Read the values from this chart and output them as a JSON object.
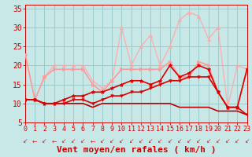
{
  "xlabel": "Vent moyen/en rafales ( km/h )",
  "xlim": [
    0,
    23
  ],
  "ylim": [
    5,
    36
  ],
  "yticks": [
    5,
    10,
    15,
    20,
    25,
    30,
    35
  ],
  "xticks": [
    0,
    1,
    2,
    3,
    4,
    5,
    6,
    7,
    8,
    9,
    10,
    11,
    12,
    13,
    14,
    15,
    16,
    17,
    18,
    19,
    20,
    21,
    22,
    23
  ],
  "bg_color": "#c8e8e8",
  "grid_color": "#99cccc",
  "lines": [
    {
      "x": [
        0,
        1,
        2,
        3,
        4,
        5,
        6,
        7,
        8,
        9,
        10,
        11,
        12,
        13,
        14,
        15,
        16,
        17,
        18,
        19,
        20,
        21,
        22,
        23
      ],
      "y": [
        11,
        11,
        10,
        10,
        10,
        10,
        10,
        9,
        10,
        10,
        10,
        10,
        10,
        10,
        10,
        10,
        9,
        9,
        9,
        9,
        8,
        8,
        8,
        7
      ],
      "color": "#bb0000",
      "lw": 1.2,
      "marker": null,
      "ms": 0,
      "alpha": 1.0,
      "zorder": 3
    },
    {
      "x": [
        0,
        1,
        2,
        3,
        4,
        5,
        6,
        7,
        8,
        9,
        10,
        11,
        12,
        13,
        14,
        15,
        16,
        17,
        18,
        19,
        20,
        21,
        22,
        23
      ],
      "y": [
        11,
        11,
        10,
        10,
        10,
        11,
        11,
        10,
        11,
        12,
        12,
        13,
        13,
        14,
        15,
        16,
        16,
        17,
        17,
        17,
        13,
        9,
        9,
        7
      ],
      "color": "#dd0000",
      "lw": 1.2,
      "marker": "v",
      "ms": 2.5,
      "alpha": 1.0,
      "zorder": 4
    },
    {
      "x": [
        0,
        1,
        2,
        3,
        4,
        5,
        6,
        7,
        8,
        9,
        10,
        11,
        12,
        13,
        14,
        15,
        16,
        17,
        18,
        19,
        20,
        21,
        22,
        23
      ],
      "y": [
        11,
        11,
        10,
        10,
        11,
        12,
        12,
        13,
        13,
        14,
        15,
        16,
        16,
        15,
        16,
        20,
        17,
        18,
        20,
        19,
        13,
        9,
        9,
        19
      ],
      "color": "#dd0000",
      "lw": 1.2,
      "marker": "*",
      "ms": 3.5,
      "alpha": 1.0,
      "zorder": 4
    },
    {
      "x": [
        0,
        1,
        2,
        3,
        4,
        5,
        6,
        7,
        8,
        9,
        10,
        11,
        12,
        13,
        14,
        15,
        16,
        17,
        18,
        19,
        20,
        21,
        22,
        23
      ],
      "y": [
        23,
        11,
        17,
        19,
        19,
        19,
        19,
        15,
        13,
        16,
        19,
        19,
        19,
        19,
        19,
        21,
        17,
        17,
        21,
        20,
        13,
        9,
        9,
        19
      ],
      "color": "#ff9999",
      "lw": 1.2,
      "marker": ">",
      "ms": 3,
      "alpha": 1.0,
      "zorder": 3
    },
    {
      "x": [
        0,
        1,
        2,
        3,
        4,
        5,
        6,
        7,
        8,
        9,
        10,
        11,
        12,
        13,
        14,
        15,
        16,
        17,
        18,
        19,
        20,
        21,
        22,
        23
      ],
      "y": [
        23,
        11,
        17,
        20,
        20,
        20,
        20,
        16,
        14,
        16,
        30,
        20,
        25,
        28,
        20,
        25,
        32,
        34,
        33,
        27,
        30,
        9,
        20,
        19
      ],
      "color": "#ffaaaa",
      "lw": 1.0,
      "marker": "^",
      "ms": 3,
      "alpha": 0.9,
      "zorder": 2
    }
  ],
  "arrow_color": "#cc2222",
  "text_color": "#cc0000",
  "tick_fontsize": 6,
  "xlabel_fontsize": 8
}
